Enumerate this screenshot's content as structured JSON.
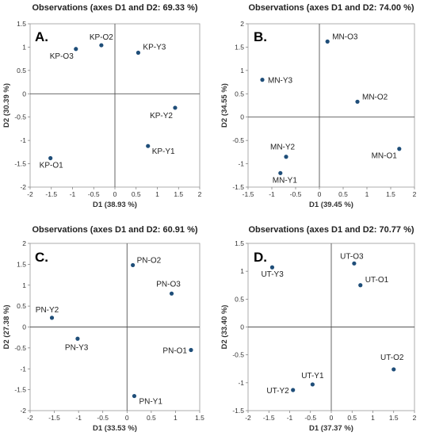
{
  "chart_data": [
    {
      "type": "scatter",
      "panel_label": "A.",
      "title": "Observations (axes D1 and D2: 69.33 %)",
      "xlabel": "D1 (38.93 %)",
      "ylabel": "D2 (30.39 %)",
      "xlim": [
        -2,
        2
      ],
      "ylim": [
        -2,
        1.5
      ],
      "xticks": [
        "-2",
        "-1.5",
        "-1",
        "-0.5",
        "0",
        "0.5",
        "1",
        "1.5",
        "2"
      ],
      "yticks": [
        "1.5",
        "1",
        "0.5",
        "0",
        "-0.5",
        "-1",
        "-1.5",
        "-2"
      ],
      "grid": false,
      "points": [
        {
          "label": "KP-O2",
          "x": -0.32,
          "y": 1.04
        },
        {
          "label": "KP-O3",
          "x": -0.92,
          "y": 0.96
        },
        {
          "label": "KP-Y3",
          "x": 0.55,
          "y": 0.88
        },
        {
          "label": "KP-Y2",
          "x": 1.42,
          "y": -0.3
        },
        {
          "label": "KP-Y1",
          "x": 0.78,
          "y": -1.12
        },
        {
          "label": "KP-O1",
          "x": -1.52,
          "y": -1.38
        }
      ]
    },
    {
      "type": "scatter",
      "panel_label": "B.",
      "title": "Observations (axes D1 and D2: 74.00 %)",
      "xlabel": "D1 (39.45 %)",
      "ylabel": "D2 (34.55 %)",
      "xlim": [
        -1.5,
        2
      ],
      "ylim": [
        -1.5,
        2
      ],
      "xticks": [
        "-1.5",
        "-1",
        "-0.5",
        "0",
        "0.5",
        "1",
        "1.5",
        "2"
      ],
      "yticks": [
        "2",
        "1.5",
        "1",
        "0.5",
        "0",
        "-0.5",
        "-1",
        "-1.5"
      ],
      "grid": false,
      "points": [
        {
          "label": "MN-O3",
          "x": 0.17,
          "y": 1.62
        },
        {
          "label": "MN-Y3",
          "x": -1.2,
          "y": 0.8
        },
        {
          "label": "MN-O2",
          "x": 0.8,
          "y": 0.33
        },
        {
          "label": "MN-Y2",
          "x": -0.7,
          "y": -0.85
        },
        {
          "label": "MN-O1",
          "x": 1.68,
          "y": -0.68
        },
        {
          "label": "MN-Y1",
          "x": -0.82,
          "y": -1.2
        }
      ]
    },
    {
      "type": "scatter",
      "panel_label": "C.",
      "title": "Observations (axes D1 and D2: 60.91 %)",
      "xlabel": "D1 (33.53 %)",
      "ylabel": "D2 (27.38 %)",
      "xlim": [
        -2,
        1.5
      ],
      "ylim": [
        -2,
        2
      ],
      "xticks": [
        "-2",
        "-1.5",
        "-1",
        "-0.5",
        "0",
        "0.5",
        "1",
        "1.5"
      ],
      "yticks": [
        "2",
        "1.5",
        "1",
        "0.5",
        "0",
        "-0.5",
        "-1",
        "-1.5",
        "-2"
      ],
      "grid": false,
      "points": [
        {
          "label": "PN-O2",
          "x": 0.12,
          "y": 1.48
        },
        {
          "label": "PN-O3",
          "x": 0.92,
          "y": 0.8
        },
        {
          "label": "PN-Y2",
          "x": -1.55,
          "y": 0.22
        },
        {
          "label": "PN-Y3",
          "x": -1.02,
          "y": -0.28
        },
        {
          "label": "PN-O1",
          "x": 1.32,
          "y": -0.55
        },
        {
          "label": "PN-Y1",
          "x": 0.15,
          "y": -1.65
        }
      ]
    },
    {
      "type": "scatter",
      "panel_label": "D.",
      "title": "Observations (axes D1 and D2: 70.77 %)",
      "xlabel": "D1 (37.37 %)",
      "ylabel": "D2 (33.40 %)",
      "xlim": [
        -2,
        2
      ],
      "ylim": [
        -1.5,
        1.5
      ],
      "xticks": [
        "-2",
        "-1.5",
        "-1",
        "-0.5",
        "0",
        "0.5",
        "1",
        "1.5",
        "2"
      ],
      "yticks": [
        "1.5",
        "1",
        "0.5",
        "0",
        "-0.5",
        "-1",
        "-1.5"
      ],
      "grid": false,
      "points": [
        {
          "label": "UT-O3",
          "x": 0.55,
          "y": 1.14
        },
        {
          "label": "UT-Y3",
          "x": -1.42,
          "y": 1.07
        },
        {
          "label": "UT-O1",
          "x": 0.7,
          "y": 0.75
        },
        {
          "label": "UT-O2",
          "x": 1.5,
          "y": -0.76
        },
        {
          "label": "UT-Y1",
          "x": -0.45,
          "y": -1.03
        },
        {
          "label": "UT-Y2",
          "x": -0.92,
          "y": -1.13
        }
      ]
    }
  ]
}
